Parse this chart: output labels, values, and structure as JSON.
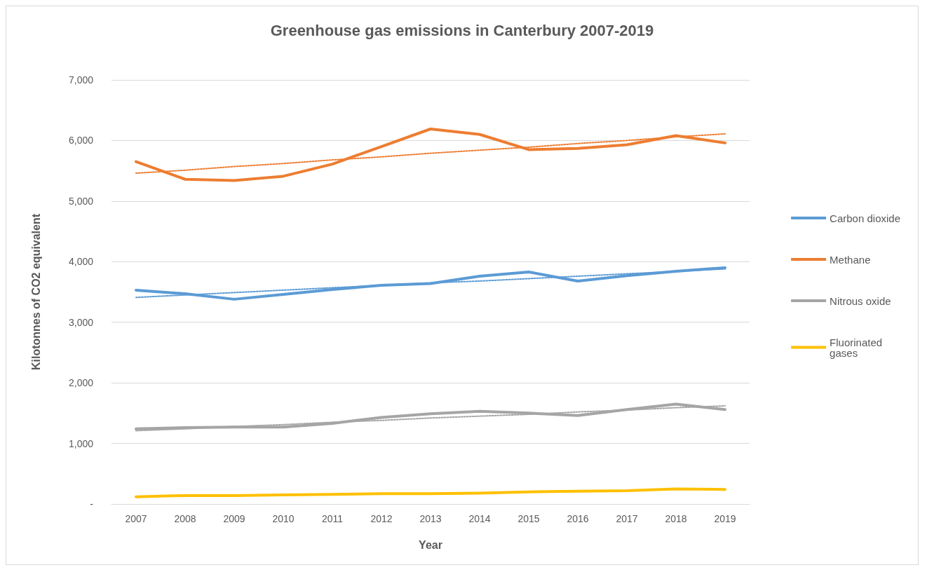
{
  "chart_data": {
    "type": "line",
    "title": "Greenhouse gas emissions in Canterbury 2007-2019",
    "xlabel": "Year",
    "ylabel": "Kilotonnes of CO2 equivalent",
    "x": [
      2007,
      2008,
      2009,
      2010,
      2011,
      2012,
      2013,
      2014,
      2015,
      2016,
      2017,
      2018,
      2019
    ],
    "xlim": [
      2006.5,
      2019.5
    ],
    "xticks": [
      2007,
      2008,
      2009,
      2010,
      2011,
      2012,
      2013,
      2014,
      2015,
      2016,
      2017,
      2018,
      2019
    ],
    "ylim": [
      0,
      7000
    ],
    "yticks": [
      {
        "value": 0,
        "label": "-"
      },
      {
        "value": 1000,
        "label": "1,000"
      },
      {
        "value": 2000,
        "label": "2,000"
      },
      {
        "value": 3000,
        "label": "3,000"
      },
      {
        "value": 4000,
        "label": "4,000"
      },
      {
        "value": 5000,
        "label": "5,000"
      },
      {
        "value": 6000,
        "label": "6,000"
      },
      {
        "value": 7000,
        "label": "7,000"
      }
    ],
    "grid": "y",
    "legend": "right",
    "marker": "none",
    "line_style": "solid",
    "series": [
      {
        "name": "Carbon dioxide",
        "color": "#5b9bd5",
        "values": [
          3530,
          3470,
          3380,
          3460,
          3540,
          3610,
          3640,
          3760,
          3830,
          3680,
          3770,
          3840,
          3900
        ]
      },
      {
        "name": "Methane",
        "color": "#ed7d31",
        "values": [
          5650,
          5360,
          5340,
          5410,
          5610,
          5900,
          6190,
          6100,
          5850,
          5870,
          5930,
          6080,
          5960
        ]
      },
      {
        "name": "Nitrous oxide",
        "color": "#a5a5a5",
        "values": [
          1240,
          1260,
          1270,
          1270,
          1330,
          1430,
          1490,
          1530,
          1500,
          1460,
          1560,
          1650,
          1560
        ]
      },
      {
        "name": "Fluorinated gases",
        "color": "#ffc000",
        "values": [
          120,
          140,
          140,
          150,
          160,
          170,
          170,
          180,
          200,
          210,
          220,
          250,
          240
        ]
      },
      {
        "type": "line",
        "color": "#5b9bd5",
        "line_style": "dotted",
        "values": [
          3410,
          3450,
          3490,
          3530,
          3570,
          3610,
          3650,
          3680,
          3720,
          3760,
          3800,
          3840,
          3880
        ]
      },
      {
        "type": "line",
        "color": "#ed7d31",
        "line_style": "dotted",
        "values": [
          5460,
          5510,
          5570,
          5620,
          5680,
          5730,
          5790,
          5840,
          5890,
          5950,
          6000,
          6060,
          6110
        ]
      },
      {
        "type": "line",
        "color": "#a5a5a5",
        "line_style": "dotted",
        "values": [
          1210,
          1240,
          1280,
          1310,
          1350,
          1380,
          1420,
          1450,
          1480,
          1520,
          1550,
          1590,
          1620
        ]
      }
    ]
  }
}
